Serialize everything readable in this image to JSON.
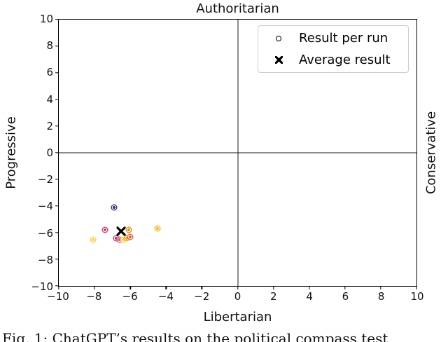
{
  "caption": "Fig. 1: ChatGPT’s results on the political compass test",
  "chart_data": {
    "type": "scatter",
    "title": "Authoritarian",
    "xlabel": "Libertarian",
    "ylabel_left": "Progressive",
    "ylabel_right": "Conservative",
    "xlim": [
      -10,
      10
    ],
    "ylim": [
      -10,
      10
    ],
    "grid": false,
    "legend_position": "upper right",
    "x_ticks": [
      {
        "value": -10,
        "label": "−10"
      },
      {
        "value": -8,
        "label": "−8"
      },
      {
        "value": -6,
        "label": "−6"
      },
      {
        "value": -4,
        "label": "−4"
      },
      {
        "value": -2,
        "label": "−2"
      },
      {
        "value": 0,
        "label": "0"
      },
      {
        "value": 2,
        "label": "2"
      },
      {
        "value": 4,
        "label": "4"
      },
      {
        "value": 6,
        "label": "6"
      },
      {
        "value": 8,
        "label": "8"
      },
      {
        "value": 10,
        "label": "10"
      }
    ],
    "y_ticks": [
      {
        "value": -10,
        "label": "−10"
      },
      {
        "value": -8,
        "label": "−8"
      },
      {
        "value": -6,
        "label": "−6"
      },
      {
        "value": -4,
        "label": "−4"
      },
      {
        "value": -2,
        "label": "−2"
      },
      {
        "value": 0,
        "label": "0"
      },
      {
        "value": 2,
        "label": "2"
      },
      {
        "value": 4,
        "label": "4"
      },
      {
        "value": 6,
        "label": "6"
      },
      {
        "value": 8,
        "label": "8"
      },
      {
        "value": 10,
        "label": "10"
      }
    ],
    "legend": [
      {
        "marker": "circle",
        "label": "Result per run"
      },
      {
        "marker": "x",
        "label": "Average result"
      }
    ],
    "series": [
      {
        "name": "Result per run",
        "marker": "circle",
        "points": [
          {
            "x": -6.9,
            "y": -4.1,
            "color": "#44287b"
          },
          {
            "x": -7.4,
            "y": -5.8,
            "color": "#d5426c"
          },
          {
            "x": -6.1,
            "y": -5.8,
            "color": "#fa8b0b"
          },
          {
            "x": -4.5,
            "y": -5.7,
            "color": "#fcb30f"
          },
          {
            "x": -8.1,
            "y": -6.5,
            "color": "#f8d348"
          },
          {
            "x": -6.8,
            "y": -6.4,
            "color": "#ca3365"
          },
          {
            "x": -6.6,
            "y": -6.5,
            "color": "#d9486e"
          },
          {
            "x": -6.4,
            "y": -6.5,
            "color": "#f2d93f"
          },
          {
            "x": -6.2,
            "y": -6.4,
            "color": "#f89c10"
          },
          {
            "x": -6.0,
            "y": -6.3,
            "color": "#ec6140"
          }
        ]
      },
      {
        "name": "Average result",
        "marker": "x",
        "points": [
          {
            "x": -6.5,
            "y": -5.9,
            "color": "#000000"
          }
        ]
      }
    ]
  }
}
